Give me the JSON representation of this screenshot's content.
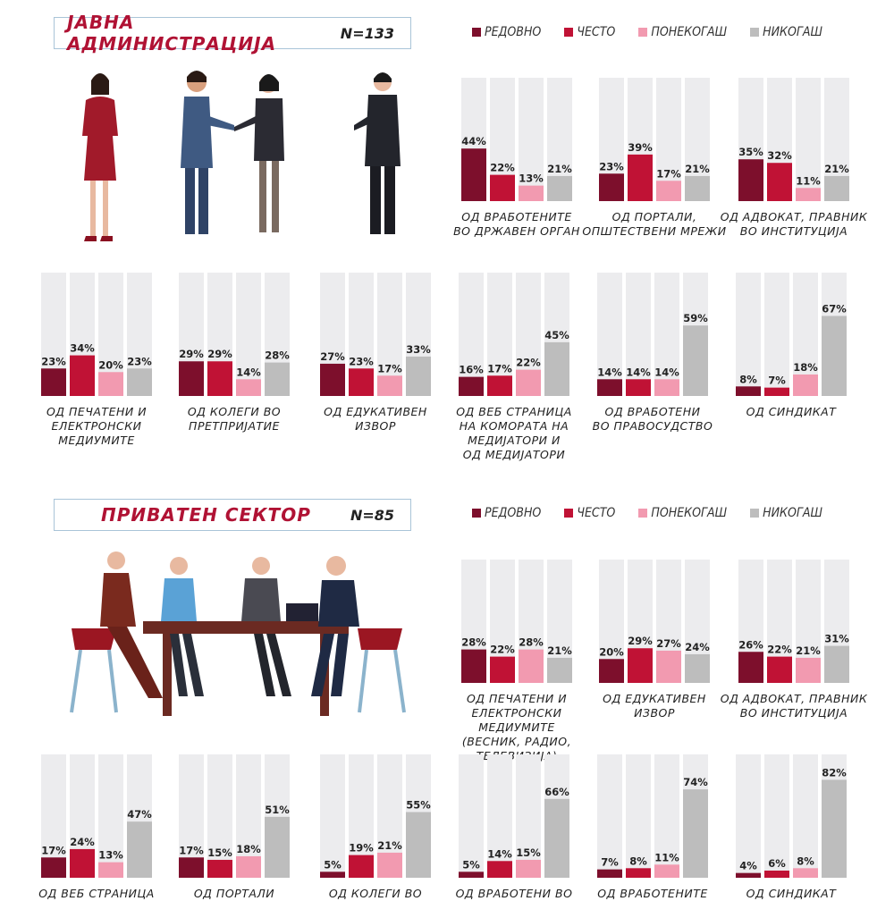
{
  "colors": {
    "redovno": "#7d0f2c",
    "cesto": "#c01235",
    "ponekogas": "#f29ab0",
    "nikogas": "#bdbdbd",
    "track": "#ececee",
    "title": "#b01234"
  },
  "legend": [
    "РЕДОВНО",
    "ЧЕСТО",
    "ПОНЕКОГАШ",
    "НИКОГАШ"
  ],
  "sections": [
    {
      "title": "ЈАВНА АДМИНИСТРАЦИЈА",
      "n": "N=133"
    },
    {
      "title": "ПРИВАТЕН СЕКТОР",
      "n": "N=85"
    }
  ],
  "chart_data": [
    {
      "type": "bar",
      "section": "ЈАВНА АДМИНИСТРАЦИЈА",
      "caption": [
        "ОД ВРАБОТЕНИТЕ",
        "ВО ДРЖАВЕН ОРГАН"
      ],
      "categories": [
        "РЕДОВНО",
        "ЧЕСТО",
        "ПОНЕКОГАШ",
        "НИКОГАШ"
      ],
      "values": [
        44,
        22,
        13,
        21
      ],
      "ylim": [
        0,
        100
      ]
    },
    {
      "type": "bar",
      "section": "ЈАВНА АДМИНИСТРАЦИЈА",
      "caption": [
        "ОД ПОРТАЛИ,",
        "ОПШТЕСТВЕНИ МРЕЖИ"
      ],
      "categories": [
        "РЕДОВНО",
        "ЧЕСТО",
        "ПОНЕКОГАШ",
        "НИКОГАШ"
      ],
      "values": [
        23,
        39,
        17,
        21
      ],
      "ylim": [
        0,
        100
      ]
    },
    {
      "type": "bar",
      "section": "ЈАВНА АДМИНИСТРАЦИЈА",
      "caption": [
        "ОД АДВОКАТ, ПРАВНИК",
        "ВО ИНСТИТУЦИЈА"
      ],
      "categories": [
        "РЕДОВНО",
        "ЧЕСТО",
        "ПОНЕКОГАШ",
        "НИКОГАШ"
      ],
      "values": [
        35,
        32,
        11,
        21
      ],
      "ylim": [
        0,
        100
      ]
    },
    {
      "type": "bar",
      "section": "ЈАВНА АДМИНИСТРАЦИЈА",
      "caption": [
        "ОД ПЕЧАТЕНИ И",
        "ЕЛЕКТРОНСКИ МЕДИУМИТЕ"
      ],
      "categories": [
        "РЕДОВНО",
        "ЧЕСТО",
        "ПОНЕКОГАШ",
        "НИКОГАШ"
      ],
      "values": [
        23,
        34,
        20,
        23
      ],
      "ylim": [
        0,
        100
      ]
    },
    {
      "type": "bar",
      "section": "ЈАВНА АДМИНИСТРАЦИЈА",
      "caption": [
        "ОД КОЛЕГИ ВО",
        "ПРЕТПРИЈАТИЕ"
      ],
      "categories": [
        "РЕДОВНО",
        "ЧЕСТО",
        "ПОНЕКОГАШ",
        "НИКОГАШ"
      ],
      "values": [
        29,
        29,
        14,
        28
      ],
      "ylim": [
        0,
        100
      ]
    },
    {
      "type": "bar",
      "section": "ЈАВНА АДМИНИСТРАЦИЈА",
      "caption": [
        "ОД ЕДУКАТИВЕН",
        "ИЗВОР"
      ],
      "categories": [
        "РЕДОВНО",
        "ЧЕСТО",
        "ПОНЕКОГАШ",
        "НИКОГАШ"
      ],
      "values": [
        27,
        23,
        17,
        33
      ],
      "ylim": [
        0,
        100
      ]
    },
    {
      "type": "bar",
      "section": "ЈАВНА АДМИНИСТРАЦИЈА",
      "caption": [
        "ОД ВЕБ СТРАНИЦА",
        "НА КОМОРАТА НА",
        "МЕДИЈАТОРИ И",
        "ОД МЕДИЈАТОРИ"
      ],
      "categories": [
        "РЕДОВНО",
        "ЧЕСТО",
        "ПОНЕКОГАШ",
        "НИКОГАШ"
      ],
      "values": [
        16,
        17,
        22,
        45
      ],
      "ylim": [
        0,
        100
      ]
    },
    {
      "type": "bar",
      "section": "ЈАВНА АДМИНИСТРАЦИЈА",
      "caption": [
        "ОД ВРАБОТЕНИ",
        "ВО ПРАВОСУДСТВО"
      ],
      "categories": [
        "РЕДОВНО",
        "ЧЕСТО",
        "ПОНЕКОГАШ",
        "НИКОГАШ"
      ],
      "values": [
        14,
        14,
        14,
        59
      ],
      "ylim": [
        0,
        100
      ]
    },
    {
      "type": "bar",
      "section": "ЈАВНА АДМИНИСТРАЦИЈА",
      "caption": [
        "ОД СИНДИКАТ"
      ],
      "categories": [
        "РЕДОВНО",
        "ЧЕСТО",
        "ПОНЕКОГАШ",
        "НИКОГАШ"
      ],
      "values": [
        8,
        7,
        18,
        67
      ],
      "ylim": [
        0,
        100
      ]
    },
    {
      "type": "bar",
      "section": "ПРИВАТЕН СЕКТОР",
      "caption": [
        "ОД ПЕЧАТЕНИ И",
        "ЕЛЕКТРОНСКИ МЕДИУМИТЕ",
        "(ВЕСНИК, РАДИО, ТЕЛЕВИЗИЈА)"
      ],
      "categories": [
        "РЕДОВНО",
        "ЧЕСТО",
        "ПОНЕКОГАШ",
        "НИКОГАШ"
      ],
      "values": [
        28,
        22,
        28,
        21
      ],
      "ylim": [
        0,
        100
      ]
    },
    {
      "type": "bar",
      "section": "ПРИВАТЕН СЕКТОР",
      "caption": [
        "ОД ЕДУКАТИВЕН",
        "ИЗВОР"
      ],
      "categories": [
        "РЕДОВНО",
        "ЧЕСТО",
        "ПОНЕКОГАШ",
        "НИКОГАШ"
      ],
      "values": [
        20,
        29,
        27,
        24
      ],
      "ylim": [
        0,
        100
      ]
    },
    {
      "type": "bar",
      "section": "ПРИВАТЕН СЕКТОР",
      "caption": [
        "ОД АДВОКАТ, ПРАВНИК",
        "ВО ИНСТИТУЦИЈА"
      ],
      "categories": [
        "РЕДОВНО",
        "ЧЕСТО",
        "ПОНЕКОГАШ",
        "НИКОГАШ"
      ],
      "values": [
        26,
        22,
        21,
        31
      ],
      "ylim": [
        0,
        100
      ]
    },
    {
      "type": "bar",
      "section": "ПРИВАТЕН СЕКТОР",
      "caption": [
        "ОД ВЕБ СТРАНИЦА"
      ],
      "categories": [
        "РЕДОВНО",
        "ЧЕСТО",
        "ПОНЕКОГАШ",
        "НИКОГАШ"
      ],
      "values": [
        17,
        24,
        13,
        47
      ],
      "ylim": [
        0,
        100
      ]
    },
    {
      "type": "bar",
      "section": "ПРИВАТЕН СЕКТОР",
      "caption": [
        "ОД ПОРТАЛИ"
      ],
      "categories": [
        "РЕДОВНО",
        "ЧЕСТО",
        "ПОНЕКОГАШ",
        "НИКОГАШ"
      ],
      "values": [
        17,
        15,
        18,
        51
      ],
      "ylim": [
        0,
        100
      ]
    },
    {
      "type": "bar",
      "section": "ПРИВАТЕН СЕКТОР",
      "caption": [
        "ОД КОЛЕГИ ВО"
      ],
      "categories": [
        "РЕДОВНО",
        "ЧЕСТО",
        "ПОНЕКОГАШ",
        "НИКОГАШ"
      ],
      "values": [
        5,
        19,
        21,
        55
      ],
      "ylim": [
        0,
        100
      ]
    },
    {
      "type": "bar",
      "section": "ПРИВАТЕН СЕКТОР",
      "caption": [
        "ОД ВРАБОТЕНИ ВО"
      ],
      "categories": [
        "РЕДОВНО",
        "ЧЕСТО",
        "ПОНЕКОГАШ",
        "НИКОГАШ"
      ],
      "values": [
        5,
        14,
        15,
        66
      ],
      "ylim": [
        0,
        100
      ]
    },
    {
      "type": "bar",
      "section": "ПРИВАТЕН СЕКТОР",
      "caption": [
        "ОД ВРАБОТЕНИТЕ"
      ],
      "categories": [
        "РЕДОВНО",
        "ЧЕСТО",
        "ПОНЕКОГАШ",
        "НИКОГАШ"
      ],
      "values": [
        7,
        8,
        11,
        74
      ],
      "ylim": [
        0,
        100
      ]
    },
    {
      "type": "bar",
      "section": "ПРИВАТЕН СЕКТОР",
      "caption": [
        "ОД СИНДИКАТ"
      ],
      "categories": [
        "РЕДОВНО",
        "ЧЕСТО",
        "ПОНЕКОГАШ",
        "НИКОГАШ"
      ],
      "values": [
        4,
        6,
        8,
        82
      ],
      "ylim": [
        0,
        100
      ]
    }
  ]
}
